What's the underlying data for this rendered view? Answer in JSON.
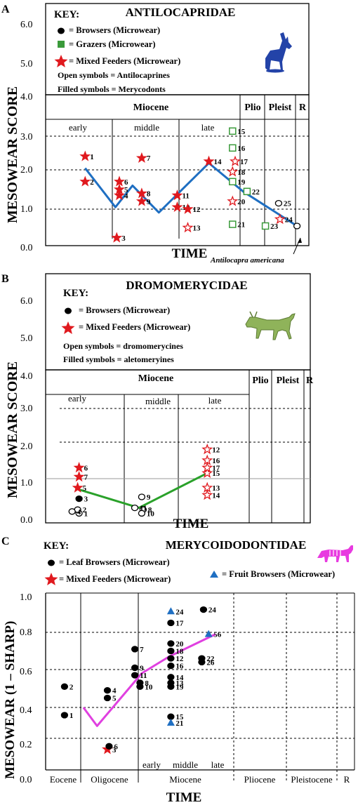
{
  "panels": [
    {
      "letter": "A",
      "title": "ANTILOCAPRIDAE",
      "key_title": "KEY:",
      "key": [
        {
          "shape": "circle",
          "filled": true,
          "color": "#000000",
          "label": "= Browsers (Microwear)"
        },
        {
          "shape": "square",
          "filled": true,
          "color": "#3a9a3a",
          "label": "= Grazers (Microwear)"
        },
        {
          "shape": "star",
          "filled": true,
          "color": "#e0191e",
          "label": "= Mixed Feeders (Microwear)"
        }
      ],
      "notes": [
        "Open symbols = Antilocaprines",
        "Filled symbols = Merycodonts"
      ],
      "ylabel": "MESOWEAR SCORE",
      "xlabel": "TIME",
      "yticks": [
        "6.0",
        "5.0",
        "4.0",
        "3.0",
        "2.0",
        "1.0",
        "0.0"
      ],
      "periods": [
        "Miocene",
        "Plio",
        "Pleist",
        "R"
      ],
      "subperiods": [
        "early",
        "middle",
        "late"
      ],
      "annotation": "Antilocapra americana",
      "line_color": "#1f6fc2",
      "icon": "pronghorn-silhouette-icon"
    },
    {
      "letter": "B",
      "title": "DROMOMERYCIDAE",
      "key_title": "KEY:",
      "key": [
        {
          "shape": "circle",
          "filled": true,
          "color": "#000000",
          "label": "= Browsers (Microwear)"
        },
        {
          "shape": "star",
          "filled": true,
          "color": "#e0191e",
          "label": "= Mixed Feeders (Microwear)"
        }
      ],
      "notes": [
        "Open symbols = dromomerycines",
        "Filled symbols = aletomeryines"
      ],
      "ylabel": "MESOWEAR SCORE",
      "xlabel": "TIME",
      "yticks": [
        "6.0",
        "5.0",
        "4.0",
        "3.0",
        "2.0",
        "1.0",
        "0.0"
      ],
      "periods": [
        "Miocene",
        "Plio",
        "Pleist",
        "R"
      ],
      "subperiods": [
        "early",
        "middle",
        "late"
      ],
      "line_color": "#2aa12a",
      "icon": "dromomerycid-illustration-icon"
    },
    {
      "letter": "C",
      "title": "MERYCOIDODONTIDAE",
      "key_title": "KEY:",
      "key": [
        {
          "shape": "circle",
          "filled": true,
          "color": "#000000",
          "label": "= Leaf Browsers (Microwear)"
        },
        {
          "shape": "star",
          "filled": true,
          "color": "#e0191e",
          "label": "= Mixed Feeders (Microwear)"
        },
        {
          "shape": "triangle",
          "filled": true,
          "color": "#1f6fc2",
          "label": "= Fruit Browsers (Microwear)"
        }
      ],
      "ylabel": "MESOWEAR  (1 – SHARP)",
      "xlabel": "TIME",
      "yticks": [
        "1.0",
        "0.8",
        "0.6",
        "0.4",
        "0.2",
        "0.0"
      ],
      "periods": [
        "Eocene",
        "Oligocene",
        "Miocene",
        "Pliocene",
        "Pleistocene",
        "R"
      ],
      "subperiods": [
        "early",
        "middle",
        "late"
      ],
      "line_color": "#e040e0",
      "icon": "oreodont-silhouette-icon"
    }
  ],
  "chart_data": [
    {
      "type": "scatter",
      "title": "ANTILOCAPRIDAE",
      "ylabel": "MESOWEAR SCORE",
      "xlabel": "TIME",
      "ylim": [
        0,
        6
      ],
      "x_units": "relative geologic time (Miocene early → Recent), estimated",
      "points": [
        {
          "label": "1",
          "x": 1.5,
          "y": 2.4,
          "group": "mixed",
          "filled": true
        },
        {
          "label": "2",
          "x": 1.5,
          "y": 1.7,
          "group": "mixed",
          "filled": true
        },
        {
          "label": "3",
          "x": 2.7,
          "y": 0.15,
          "group": "mixed",
          "filled": true
        },
        {
          "label": "4",
          "x": 2.8,
          "y": 1.35,
          "group": "mixed",
          "filled": true
        },
        {
          "label": "5",
          "x": 2.8,
          "y": 1.5,
          "group": "mixed",
          "filled": true
        },
        {
          "label": "6",
          "x": 2.8,
          "y": 1.7,
          "group": "mixed",
          "filled": true
        },
        {
          "label": "7",
          "x": 3.65,
          "y": 2.35,
          "group": "mixed",
          "filled": true
        },
        {
          "label": "8",
          "x": 3.65,
          "y": 1.4,
          "group": "mixed",
          "filled": true
        },
        {
          "label": "9",
          "x": 3.65,
          "y": 1.2,
          "group": "mixed",
          "filled": true
        },
        {
          "label": "10",
          "x": 5.0,
          "y": 1.05,
          "group": "mixed",
          "filled": true
        },
        {
          "label": "11",
          "x": 5.0,
          "y": 1.35,
          "group": "mixed",
          "filled": true
        },
        {
          "label": "12",
          "x": 5.4,
          "y": 1.0,
          "group": "mixed",
          "filled": true
        },
        {
          "label": "13",
          "x": 5.4,
          "y": 0.45,
          "group": "mixed",
          "filled": false
        },
        {
          "label": "14",
          "x": 6.2,
          "y": 2.25,
          "group": "mixed",
          "filled": true
        },
        {
          "label": "15",
          "x": 7.1,
          "y": 3.15,
          "group": "grazer",
          "filled": false
        },
        {
          "label": "16",
          "x": 7.1,
          "y": 2.65,
          "group": "grazer",
          "filled": false
        },
        {
          "label": "17",
          "x": 7.2,
          "y": 2.25,
          "group": "mixed",
          "filled": false
        },
        {
          "label": "18",
          "x": 7.1,
          "y": 1.95,
          "group": "mixed",
          "filled": false
        },
        {
          "label": "19",
          "x": 7.1,
          "y": 1.7,
          "group": "grazer",
          "filled": false
        },
        {
          "label": "20",
          "x": 7.1,
          "y": 1.2,
          "group": "mixed",
          "filled": false
        },
        {
          "label": "21",
          "x": 7.1,
          "y": 0.55,
          "group": "grazer",
          "filled": false
        },
        {
          "label": "22",
          "x": 7.65,
          "y": 1.45,
          "group": "grazer",
          "filled": false
        },
        {
          "label": "23",
          "x": 8.35,
          "y": 0.5,
          "group": "grazer",
          "filled": false
        },
        {
          "label": "24",
          "x": 8.9,
          "y": 0.7,
          "group": "mixed",
          "filled": false
        },
        {
          "label": "25",
          "x": 8.85,
          "y": 1.15,
          "group": "browser",
          "filled": false
        },
        {
          "label": "",
          "x": 9.55,
          "y": 0.5,
          "group": "browser",
          "filled": false
        }
      ],
      "trend_line": [
        [
          1.5,
          2.05
        ],
        [
          2.65,
          1.05
        ],
        [
          3.3,
          1.6
        ],
        [
          4.3,
          0.9
        ],
        [
          6.2,
          2.2
        ],
        [
          7.5,
          1.45
        ],
        [
          9.55,
          0.5
        ]
      ]
    },
    {
      "type": "scatter",
      "title": "DROMOMERYCIDAE",
      "ylabel": "MESOWEAR SCORE",
      "xlabel": "TIME",
      "ylim": [
        0,
        6
      ],
      "x_units": "relative geologic time (Miocene early → Recent), estimated",
      "points": [
        {
          "label": "1",
          "x": 1.2,
          "y": 0.05,
          "group": "browser",
          "filled": false
        },
        {
          "label": "2",
          "x": 1.15,
          "y": 0.15,
          "group": "browser",
          "filled": false
        },
        {
          "label": "3",
          "x": 1.2,
          "y": 0.45,
          "group": "browser",
          "filled": true
        },
        {
          "label": "4",
          "x": 0.95,
          "y": 0.1,
          "group": "browser",
          "filled": false
        },
        {
          "label": "5",
          "x": 1.15,
          "y": 0.75,
          "group": "mixed",
          "filled": true
        },
        {
          "label": "6",
          "x": 1.2,
          "y": 1.3,
          "group": "mixed",
          "filled": true
        },
        {
          "label": "7",
          "x": 1.2,
          "y": 1.05,
          "group": "mixed",
          "filled": true
        },
        {
          "label": "8",
          "x": 3.5,
          "y": 0.15,
          "group": "browser",
          "filled": false
        },
        {
          "label": "9",
          "x": 3.45,
          "y": 0.5,
          "group": "browser",
          "filled": false
        },
        {
          "label": "10",
          "x": 3.45,
          "y": 0.05,
          "group": "browser",
          "filled": false
        },
        {
          "label": "11",
          "x": 3.2,
          "y": 0.2,
          "group": "browser",
          "filled": false
        },
        {
          "label": "12",
          "x": 5.8,
          "y": 1.8,
          "group": "mixed",
          "filled": false
        },
        {
          "label": "13",
          "x": 5.8,
          "y": 0.75,
          "group": "mixed",
          "filled": false
        },
        {
          "label": "14",
          "x": 5.8,
          "y": 0.55,
          "group": "mixed",
          "filled": false
        },
        {
          "label": "15",
          "x": 5.8,
          "y": 1.15,
          "group": "mixed",
          "filled": false
        },
        {
          "label": "16",
          "x": 5.8,
          "y": 1.5,
          "group": "mixed",
          "filled": false
        },
        {
          "label": "17",
          "x": 5.8,
          "y": 1.3,
          "group": "mixed",
          "filled": false
        }
      ],
      "trend_line": [
        [
          1.2,
          0.7
        ],
        [
          3.35,
          0.2
        ],
        [
          5.8,
          1.15
        ]
      ]
    },
    {
      "type": "scatter",
      "title": "MERYCOIDODONTIDAE",
      "ylabel": "MESOWEAR  (1 – SHARP)",
      "xlabel": "TIME",
      "ylim": [
        0,
        1.0
      ],
      "x_units": "relative geologic time (Eocene → Recent), estimated",
      "points": [
        {
          "label": "1",
          "x": 0.55,
          "y": 0.35,
          "group": "leaf-browser",
          "filled": true
        },
        {
          "label": "2",
          "x": 0.55,
          "y": 0.51,
          "group": "leaf-browser",
          "filled": true
        },
        {
          "label": "3",
          "x": 1.8,
          "y": 0.13,
          "group": "mixed",
          "filled": true
        },
        {
          "label": "4",
          "x": 1.8,
          "y": 0.49,
          "group": "leaf-browser",
          "filled": true
        },
        {
          "label": "5",
          "x": 1.8,
          "y": 0.45,
          "group": "leaf-browser",
          "filled": true
        },
        {
          "label": "6",
          "x": 1.85,
          "y": 0.15,
          "group": "leaf-browser",
          "filled": true
        },
        {
          "label": "7",
          "x": 2.6,
          "y": 0.71,
          "group": "leaf-browser",
          "filled": true
        },
        {
          "label": "8",
          "x": 2.75,
          "y": 0.53,
          "group": "leaf-browser",
          "filled": true
        },
        {
          "label": "9",
          "x": 2.6,
          "y": 0.61,
          "group": "leaf-browser",
          "filled": true
        },
        {
          "label": "10",
          "x": 2.75,
          "y": 0.51,
          "group": "leaf-browser",
          "filled": true
        },
        {
          "label": "11",
          "x": 2.6,
          "y": 0.57,
          "group": "leaf-browser",
          "filled": true
        },
        {
          "label": "12",
          "x": 3.65,
          "y": 0.66,
          "group": "leaf-browser",
          "filled": true
        },
        {
          "label": "13",
          "x": 3.65,
          "y": 0.53,
          "group": "leaf-browser",
          "filled": true
        },
        {
          "label": "14",
          "x": 3.65,
          "y": 0.56,
          "group": "leaf-browser",
          "filled": true
        },
        {
          "label": "15",
          "x": 3.65,
          "y": 0.34,
          "group": "leaf-browser",
          "filled": true
        },
        {
          "label": "16",
          "x": 3.65,
          "y": 0.62,
          "group": "leaf-browser",
          "filled": true
        },
        {
          "label": "17",
          "x": 3.65,
          "y": 0.85,
          "group": "leaf-browser",
          "filled": true
        },
        {
          "label": "18",
          "x": 3.65,
          "y": 0.7,
          "group": "leaf-browser",
          "filled": true
        },
        {
          "label": "19",
          "x": 3.65,
          "y": 0.51,
          "group": "leaf-browser",
          "filled": true
        },
        {
          "label": "20",
          "x": 3.65,
          "y": 0.74,
          "group": "leaf-browser",
          "filled": true
        },
        {
          "label": "21",
          "x": 3.65,
          "y": 0.3,
          "group": "fruit-browser",
          "filled": true
        },
        {
          "label": "22",
          "x": 4.55,
          "y": 0.66,
          "group": "leaf-browser",
          "filled": true
        },
        {
          "label": "24",
          "x": 3.65,
          "y": 0.91,
          "group": "fruit-browser",
          "filled": true
        },
        {
          "label": "24",
          "x": 4.6,
          "y": 0.92,
          "group": "leaf-browser",
          "filled": true
        },
        {
          "label": "26",
          "x": 4.55,
          "y": 0.64,
          "group": "leaf-browser",
          "filled": true
        },
        {
          "label": "56",
          "x": 4.75,
          "y": 0.79,
          "group": "fruit-browser",
          "filled": true
        }
      ],
      "trend_line": [
        [
          1.1,
          0.4
        ],
        [
          1.5,
          0.28
        ],
        [
          2.8,
          0.58
        ],
        [
          3.6,
          0.67
        ],
        [
          4.95,
          0.79
        ]
      ]
    }
  ]
}
